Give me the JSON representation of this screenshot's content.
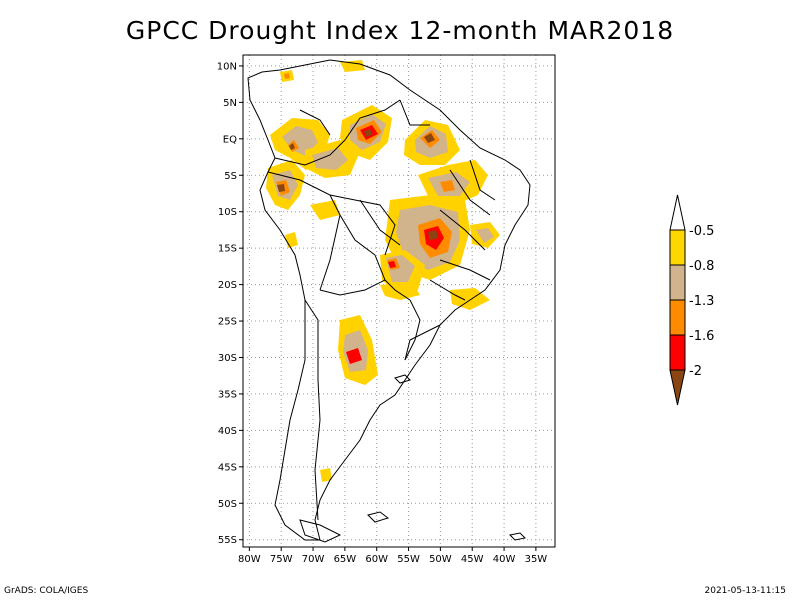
{
  "title": "GPCC Drought Index 12-month MAR2018",
  "lat_labels": [
    "10N",
    "5N",
    "EQ",
    "5S",
    "10S",
    "15S",
    "20S",
    "25S",
    "30S",
    "35S",
    "40S",
    "45S",
    "50S",
    "55S"
  ],
  "lon_labels": [
    "80W",
    "75W",
    "70W",
    "65W",
    "60W",
    "55W",
    "50W",
    "45W",
    "40W",
    "35W"
  ],
  "legend": {
    "labels": [
      "-0.5",
      "-0.8",
      "-1.3",
      "-1.6",
      "-2"
    ],
    "colors": [
      "#ffd700",
      "#d2b48c",
      "#ff8c00",
      "#ff0000",
      "#8b4513"
    ]
  },
  "colors": {
    "class1": "#ffd200",
    "class2": "#d2b48c",
    "class3": "#ff8c00",
    "class4": "#ff0000",
    "class5": "#8b4513"
  },
  "footer": {
    "left": "GrADS: COLA/IGES",
    "right": "2021-05-13-11:15"
  }
}
